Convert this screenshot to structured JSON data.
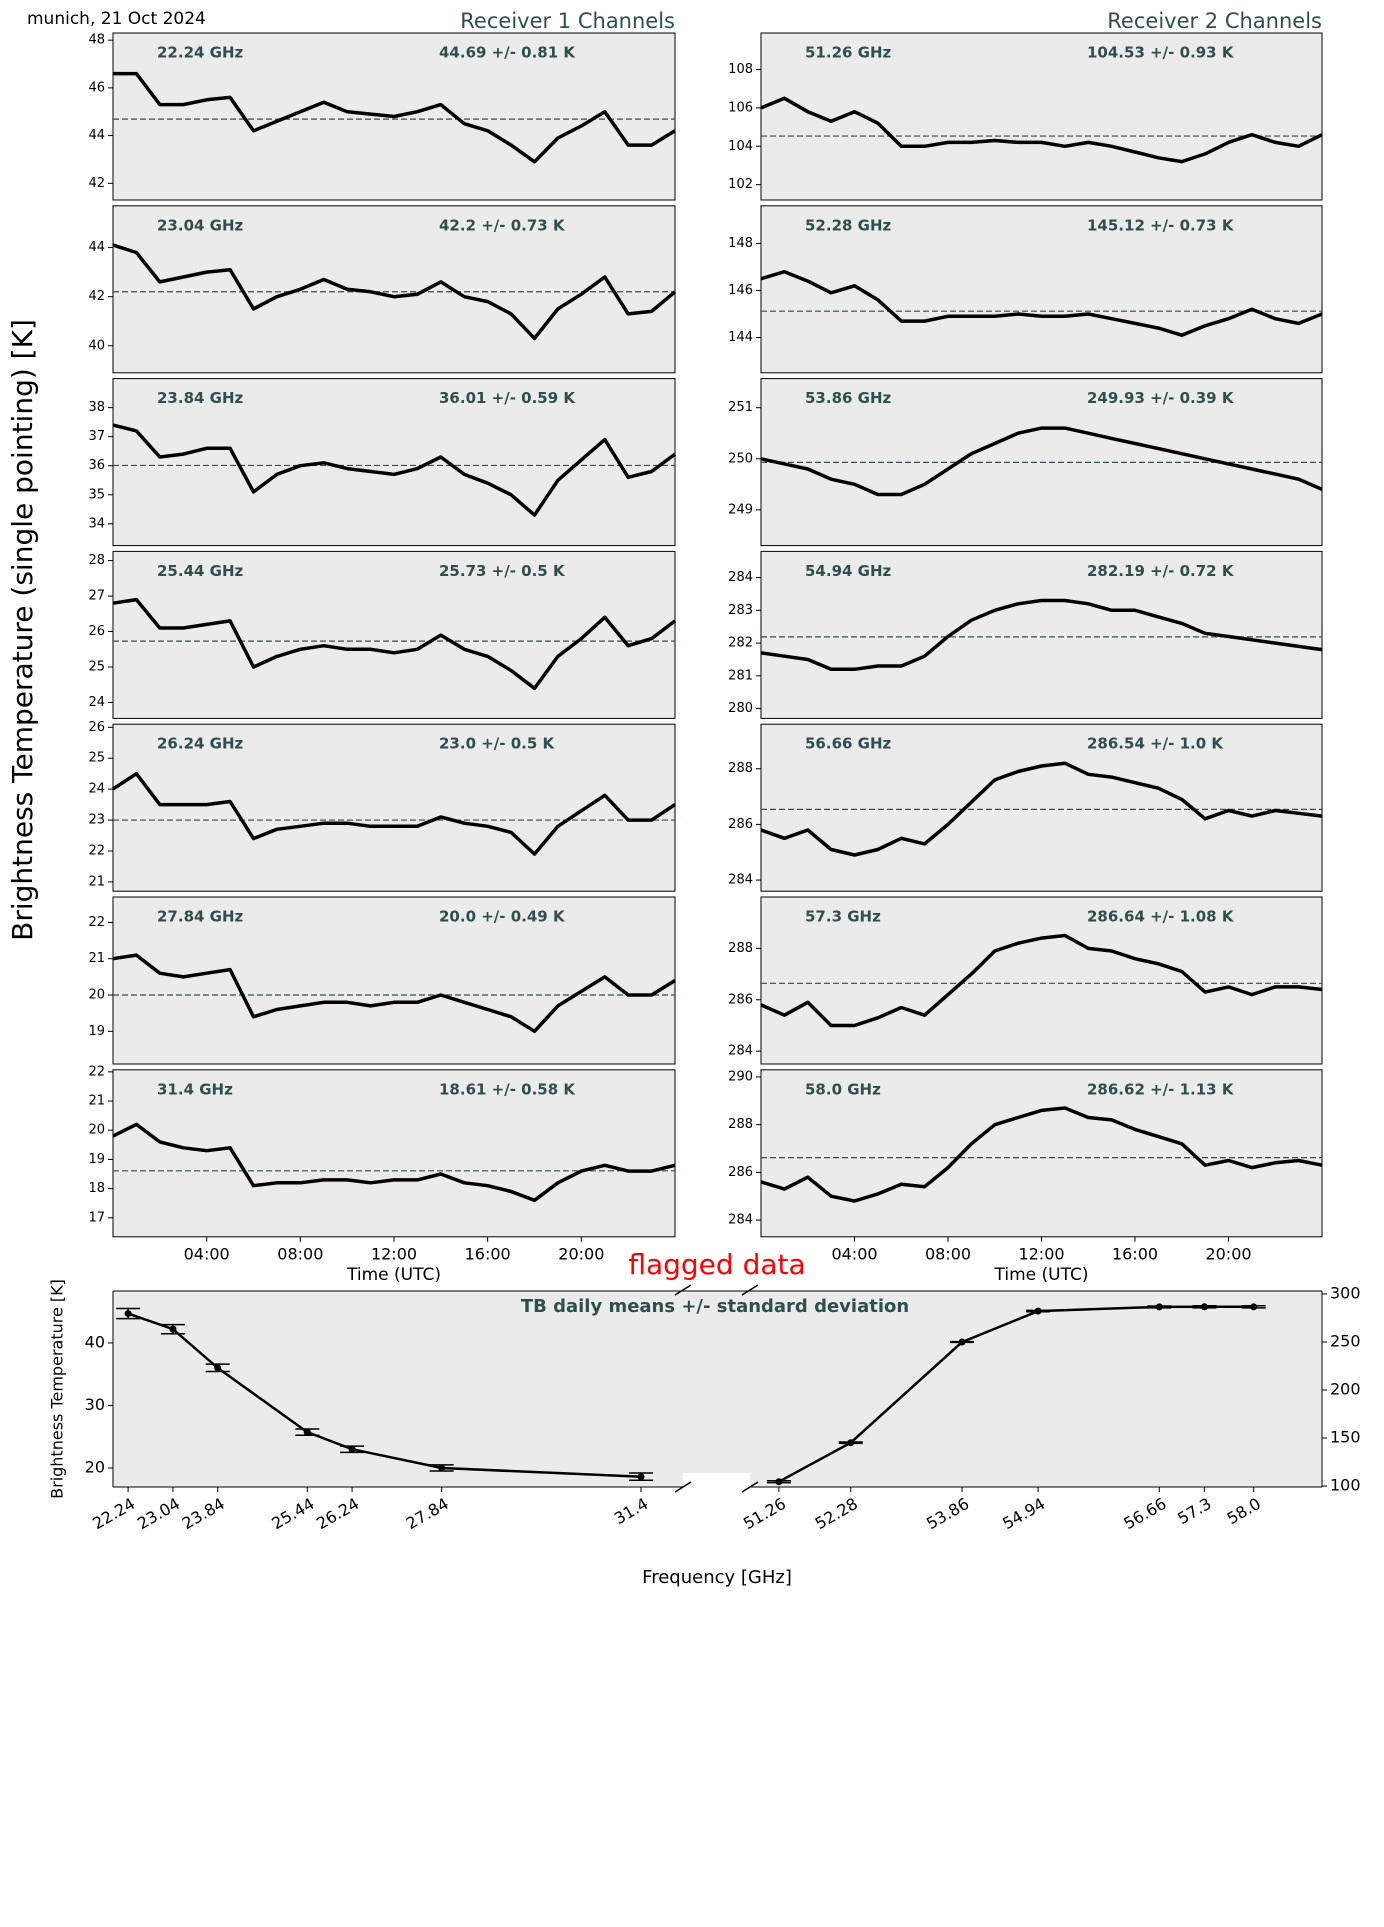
{
  "figure_title": "munich, 21 Oct 2024",
  "receiver_1_title": "Receiver 1 Channels",
  "receiver_2_title": "Receiver 2 Channels",
  "shared_ylabel": "Brightness Temperature (single pointing) [K]",
  "chart_data": [
    {
      "type": "line",
      "label": "22.24 GHz",
      "stat_label": "44.69 +/- 0.81 K",
      "mean": 44.69,
      "color": "#000000",
      "mean_color": "#2f4f4f",
      "x": [
        0,
        1,
        2,
        3,
        4,
        5,
        6,
        7,
        8,
        9,
        10,
        11,
        12,
        13,
        14,
        15,
        16,
        17,
        18,
        19,
        20,
        21,
        22,
        23,
        24
      ],
      "xlim": [
        0,
        24
      ],
      "values": [
        46.6,
        46.6,
        45.3,
        45.3,
        45.5,
        45.6,
        44.2,
        44.6,
        45.0,
        45.4,
        45.0,
        44.9,
        44.8,
        45.0,
        45.3,
        44.5,
        44.2,
        43.6,
        42.9,
        43.9,
        44.4,
        45.0,
        43.6,
        43.6,
        44.2
      ],
      "ylim": [
        41.3,
        48.3
      ],
      "yticks": [
        42,
        44,
        46,
        48
      ]
    },
    {
      "type": "line",
      "label": "23.04 GHz",
      "stat_label": "42.2 +/- 0.73 K",
      "mean": 42.2,
      "color": "#000000",
      "mean_color": "#2f4f4f",
      "x": [
        0,
        1,
        2,
        3,
        4,
        5,
        6,
        7,
        8,
        9,
        10,
        11,
        12,
        13,
        14,
        15,
        16,
        17,
        18,
        19,
        20,
        21,
        22,
        23,
        24
      ],
      "xlim": [
        0,
        24
      ],
      "values": [
        44.1,
        43.8,
        42.6,
        42.8,
        43.0,
        43.1,
        41.5,
        42.0,
        42.3,
        42.7,
        42.3,
        42.2,
        42.0,
        42.1,
        42.6,
        42.0,
        41.8,
        41.3,
        40.3,
        41.5,
        42.1,
        42.8,
        41.3,
        41.4,
        42.2
      ],
      "ylim": [
        38.9,
        45.7
      ],
      "yticks": [
        40,
        42,
        44
      ]
    },
    {
      "type": "line",
      "label": "23.84 GHz",
      "stat_label": "36.01 +/- 0.59 K",
      "mean": 36.01,
      "color": "#000000",
      "mean_color": "#2f4f4f",
      "x": [
        0,
        1,
        2,
        3,
        4,
        5,
        6,
        7,
        8,
        9,
        10,
        11,
        12,
        13,
        14,
        15,
        16,
        17,
        18,
        19,
        20,
        21,
        22,
        23,
        24
      ],
      "xlim": [
        0,
        24
      ],
      "values": [
        37.4,
        37.2,
        36.3,
        36.4,
        36.6,
        36.6,
        35.1,
        35.7,
        36.0,
        36.1,
        35.9,
        35.8,
        35.7,
        35.9,
        36.3,
        35.7,
        35.4,
        35.0,
        34.3,
        35.5,
        36.2,
        36.9,
        35.6,
        35.8,
        36.4
      ],
      "ylim": [
        33.25,
        39.0
      ],
      "yticks": [
        34,
        35,
        36,
        37,
        38
      ]
    },
    {
      "type": "line",
      "label": "25.44 GHz",
      "stat_label": "25.73 +/- 0.5 K",
      "mean": 25.73,
      "color": "#000000",
      "mean_color": "#2f4f4f",
      "x": [
        0,
        1,
        2,
        3,
        4,
        5,
        6,
        7,
        8,
        9,
        10,
        11,
        12,
        13,
        14,
        15,
        16,
        17,
        18,
        19,
        20,
        21,
        22,
        23,
        24
      ],
      "xlim": [
        0,
        24
      ],
      "values": [
        26.8,
        26.9,
        26.1,
        26.1,
        26.2,
        26.3,
        25.0,
        25.3,
        25.5,
        25.6,
        25.5,
        25.5,
        25.4,
        25.5,
        25.9,
        25.5,
        25.3,
        24.9,
        24.4,
        25.3,
        25.8,
        26.4,
        25.6,
        25.8,
        26.3
      ],
      "ylim": [
        23.55,
        28.26
      ],
      "yticks": [
        24,
        25,
        26,
        27,
        28
      ]
    },
    {
      "type": "line",
      "label": "26.24 GHz",
      "stat_label": "23.0 +/- 0.5 K",
      "mean": 23.0,
      "color": "#000000",
      "mean_color": "#2f4f4f",
      "x": [
        0,
        1,
        2,
        3,
        4,
        5,
        6,
        7,
        8,
        9,
        10,
        11,
        12,
        13,
        14,
        15,
        16,
        17,
        18,
        19,
        20,
        21,
        22,
        23,
        24
      ],
      "xlim": [
        0,
        24
      ],
      "values": [
        24.0,
        24.5,
        23.5,
        23.5,
        23.5,
        23.6,
        22.4,
        22.7,
        22.8,
        22.9,
        22.9,
        22.8,
        22.8,
        22.8,
        23.1,
        22.9,
        22.8,
        22.6,
        21.9,
        22.8,
        23.3,
        23.8,
        23.0,
        23.0,
        23.5
      ],
      "ylim": [
        20.7,
        26.1
      ],
      "yticks": [
        21,
        22,
        23,
        24,
        25,
        26
      ]
    },
    {
      "type": "line",
      "label": "27.84 GHz",
      "stat_label": "20.0 +/- 0.49 K",
      "mean": 20.0,
      "color": "#000000",
      "mean_color": "#2f4f4f",
      "x": [
        0,
        1,
        2,
        3,
        4,
        5,
        6,
        7,
        8,
        9,
        10,
        11,
        12,
        13,
        14,
        15,
        16,
        17,
        18,
        19,
        20,
        21,
        22,
        23,
        24
      ],
      "xlim": [
        0,
        24
      ],
      "values": [
        21.0,
        21.1,
        20.6,
        20.5,
        20.6,
        20.7,
        19.4,
        19.6,
        19.7,
        19.8,
        19.8,
        19.7,
        19.8,
        19.8,
        20.0,
        19.8,
        19.6,
        19.4,
        19.0,
        19.7,
        20.1,
        20.5,
        20.0,
        20.0,
        20.4
      ],
      "ylim": [
        18.1,
        22.7
      ],
      "yticks": [
        19,
        20,
        21,
        22
      ]
    },
    {
      "type": "line",
      "label": "31.4 GHz",
      "stat_label": "18.61 +/- 0.58 K",
      "mean": 18.61,
      "color": "#000000",
      "mean_color": "#2f4f4f",
      "x": [
        0,
        1,
        2,
        3,
        4,
        5,
        6,
        7,
        8,
        9,
        10,
        11,
        12,
        13,
        14,
        15,
        16,
        17,
        18,
        19,
        20,
        21,
        22,
        23,
        24
      ],
      "xlim": [
        0,
        24
      ],
      "values": [
        19.8,
        20.2,
        19.6,
        19.4,
        19.3,
        19.4,
        18.1,
        18.2,
        18.2,
        18.3,
        18.3,
        18.2,
        18.3,
        18.3,
        18.5,
        18.2,
        18.1,
        17.9,
        17.6,
        18.2,
        18.6,
        18.8,
        18.6,
        18.6,
        18.8
      ],
      "ylim": [
        16.35,
        22.07
      ],
      "yticks": [
        17,
        18,
        19,
        20,
        21,
        22
      ],
      "xticks": [
        {
          "value": 4,
          "label": "04:00"
        },
        {
          "value": 8,
          "label": "08:00"
        },
        {
          "value": 12,
          "label": "12:00"
        },
        {
          "value": 16,
          "label": "16:00"
        },
        {
          "value": 20,
          "label": "20:00"
        }
      ],
      "xlabel": "Time (UTC)"
    },
    {
      "type": "line",
      "label": "51.26 GHz",
      "stat_label": "104.53 +/- 0.93 K",
      "mean": 104.53,
      "color": "#000000",
      "mean_color": "#2f4f4f",
      "x": [
        0,
        1,
        2,
        3,
        4,
        5,
        6,
        7,
        8,
        9,
        10,
        11,
        12,
        13,
        14,
        15,
        16,
        17,
        18,
        19,
        20,
        21,
        22,
        23,
        24
      ],
      "xlim": [
        0,
        24
      ],
      "values": [
        106.0,
        106.5,
        105.8,
        105.3,
        105.8,
        105.2,
        104.0,
        104.0,
        104.2,
        104.2,
        104.3,
        104.2,
        104.2,
        104.0,
        104.2,
        104.0,
        103.7,
        103.4,
        103.2,
        103.6,
        104.2,
        104.6,
        104.2,
        104.0,
        104.6
      ],
      "ylim": [
        101.2,
        109.9
      ],
      "yticks": [
        102,
        104,
        106,
        108
      ]
    },
    {
      "type": "line",
      "label": "52.28 GHz",
      "stat_label": "145.12 +/- 0.73 K",
      "mean": 145.12,
      "color": "#000000",
      "mean_color": "#2f4f4f",
      "x": [
        0,
        1,
        2,
        3,
        4,
        5,
        6,
        7,
        8,
        9,
        10,
        11,
        12,
        13,
        14,
        15,
        16,
        17,
        18,
        19,
        20,
        21,
        22,
        23,
        24
      ],
      "xlim": [
        0,
        24
      ],
      "values": [
        146.5,
        146.8,
        146.4,
        145.9,
        146.2,
        145.6,
        144.7,
        144.7,
        144.9,
        144.9,
        144.9,
        145.0,
        144.9,
        144.9,
        145.0,
        144.8,
        144.6,
        144.4,
        144.1,
        144.5,
        144.8,
        145.2,
        144.8,
        144.6,
        145.0
      ],
      "ylim": [
        142.5,
        149.6
      ],
      "yticks": [
        144,
        146,
        148
      ]
    },
    {
      "type": "line",
      "label": "53.86 GHz",
      "stat_label": "249.93 +/- 0.39 K",
      "mean": 249.93,
      "color": "#000000",
      "mean_color": "#2f4f4f",
      "x": [
        0,
        1,
        2,
        3,
        4,
        5,
        6,
        7,
        8,
        9,
        10,
        11,
        12,
        13,
        14,
        15,
        16,
        17,
        18,
        19,
        20,
        21,
        22,
        23,
        24
      ],
      "xlim": [
        0,
        24
      ],
      "values": [
        250.0,
        249.9,
        249.8,
        249.6,
        249.5,
        249.3,
        249.3,
        249.5,
        249.8,
        250.1,
        250.3,
        250.5,
        250.6,
        250.6,
        250.5,
        250.4,
        250.3,
        250.2,
        250.1,
        250.0,
        249.9,
        249.8,
        249.7,
        249.6,
        249.4
      ],
      "ylim": [
        248.3,
        251.57
      ],
      "yticks": [
        249,
        250,
        251
      ]
    },
    {
      "type": "line",
      "label": "54.94 GHz",
      "stat_label": "282.19 +/- 0.72 K",
      "mean": 282.19,
      "color": "#000000",
      "mean_color": "#2f4f4f",
      "x": [
        0,
        1,
        2,
        3,
        4,
        5,
        6,
        7,
        8,
        9,
        10,
        11,
        12,
        13,
        14,
        15,
        16,
        17,
        18,
        19,
        20,
        21,
        22,
        23,
        24
      ],
      "xlim": [
        0,
        24
      ],
      "values": [
        281.7,
        281.6,
        281.5,
        281.2,
        281.2,
        281.3,
        281.3,
        281.6,
        282.2,
        282.7,
        283.0,
        283.2,
        283.3,
        283.3,
        283.2,
        283.0,
        283.0,
        282.8,
        282.6,
        282.3,
        282.2,
        282.1,
        282.0,
        281.9,
        281.8
      ],
      "ylim": [
        279.7,
        284.8
      ],
      "yticks": [
        280,
        281,
        282,
        283,
        284
      ]
    },
    {
      "type": "line",
      "label": "56.66 GHz",
      "stat_label": "286.54 +/- 1.0 K",
      "mean": 286.54,
      "color": "#000000",
      "mean_color": "#2f4f4f",
      "x": [
        0,
        1,
        2,
        3,
        4,
        5,
        6,
        7,
        8,
        9,
        10,
        11,
        12,
        13,
        14,
        15,
        16,
        17,
        18,
        19,
        20,
        21,
        22,
        23,
        24
      ],
      "xlim": [
        0,
        24
      ],
      "values": [
        285.8,
        285.5,
        285.8,
        285.1,
        284.9,
        285.1,
        285.5,
        285.3,
        286.0,
        286.8,
        287.6,
        287.9,
        288.1,
        288.2,
        287.8,
        287.7,
        287.5,
        287.3,
        286.9,
        286.2,
        286.5,
        286.3,
        286.5,
        286.4,
        286.3
      ],
      "ylim": [
        283.6,
        289.6
      ],
      "yticks": [
        284,
        286,
        288
      ]
    },
    {
      "type": "line",
      "label": "57.3 GHz",
      "stat_label": "286.64 +/- 1.08 K",
      "mean": 286.64,
      "color": "#000000",
      "mean_color": "#2f4f4f",
      "x": [
        0,
        1,
        2,
        3,
        4,
        5,
        6,
        7,
        8,
        9,
        10,
        11,
        12,
        13,
        14,
        15,
        16,
        17,
        18,
        19,
        20,
        21,
        22,
        23,
        24
      ],
      "xlim": [
        0,
        24
      ],
      "values": [
        285.8,
        285.4,
        285.9,
        285.0,
        285.0,
        285.3,
        285.7,
        285.4,
        286.2,
        287.0,
        287.9,
        288.2,
        288.4,
        288.5,
        288.0,
        287.9,
        287.6,
        287.4,
        287.1,
        286.3,
        286.5,
        286.2,
        286.5,
        286.5,
        286.4
      ],
      "ylim": [
        283.5,
        290.0
      ],
      "yticks": [
        284,
        286,
        288
      ]
    },
    {
      "type": "line",
      "label": "58.0 GHz",
      "stat_label": "286.62 +/- 1.13 K",
      "mean": 286.62,
      "color": "#000000",
      "mean_color": "#2f4f4f",
      "x": [
        0,
        1,
        2,
        3,
        4,
        5,
        6,
        7,
        8,
        9,
        10,
        11,
        12,
        13,
        14,
        15,
        16,
        17,
        18,
        19,
        20,
        21,
        22,
        23,
        24
      ],
      "xlim": [
        0,
        24
      ],
      "values": [
        285.6,
        285.3,
        285.8,
        285.0,
        284.8,
        285.1,
        285.5,
        285.4,
        286.2,
        287.2,
        288.0,
        288.3,
        288.6,
        288.7,
        288.3,
        288.2,
        287.8,
        287.5,
        287.2,
        286.3,
        286.5,
        286.2,
        286.4,
        286.5,
        286.3
      ],
      "ylim": [
        283.3,
        290.3
      ],
      "yticks": [
        284,
        286,
        288,
        290
      ],
      "xticks": [
        {
          "value": 4,
          "label": "04:00"
        },
        {
          "value": 8,
          "label": "08:00"
        },
        {
          "value": 12,
          "label": "12:00"
        },
        {
          "value": 16,
          "label": "16:00"
        },
        {
          "value": 20,
          "label": "20:00"
        }
      ],
      "xlabel": "Time (UTC)"
    },
    {
      "type": "errorbar",
      "title": "TB daily means +/- standard deviation",
      "annotation": "flagged data",
      "ylabel": "Brightness Temperature [K]",
      "xlabel": "Frequency [GHz]",
      "ylim": [
        16.96,
        48.3
      ],
      "yticks": [
        20,
        30,
        40
      ],
      "y2lim": [
        99.0,
        303.1
      ],
      "y2ticks": [
        100,
        150,
        200,
        250,
        300
      ],
      "series": [
        {
          "axis": "y",
          "color": "#000000",
          "xlim": [
            21.97,
            32.15
          ],
          "x": [
            22.24,
            23.04,
            23.84,
            25.44,
            26.24,
            27.84,
            31.4
          ],
          "values": [
            44.69,
            42.2,
            36.01,
            25.73,
            23.0,
            20.0,
            18.61
          ],
          "errors": [
            0.81,
            0.73,
            0.59,
            0.5,
            0.5,
            0.49,
            0.58
          ],
          "xticks": [
            22.24,
            23.04,
            23.84,
            25.44,
            26.24,
            27.84,
            31.4
          ]
        },
        {
          "axis": "y2",
          "color": "#000000",
          "xlim": [
            50.85,
            58.97
          ],
          "x": [
            51.26,
            52.28,
            53.86,
            54.94,
            56.66,
            57.3,
            58.0
          ],
          "values": [
            104.53,
            145.12,
            249.93,
            282.19,
            286.54,
            286.64,
            286.62
          ],
          "errors": [
            0.93,
            0.73,
            0.39,
            0.72,
            1.0,
            1.08,
            1.13
          ],
          "xticks": [
            51.26,
            52.28,
            53.86,
            54.94,
            56.66,
            57.3,
            {
              "value": 58.0,
              "label": "58.0"
            }
          ]
        }
      ]
    }
  ]
}
